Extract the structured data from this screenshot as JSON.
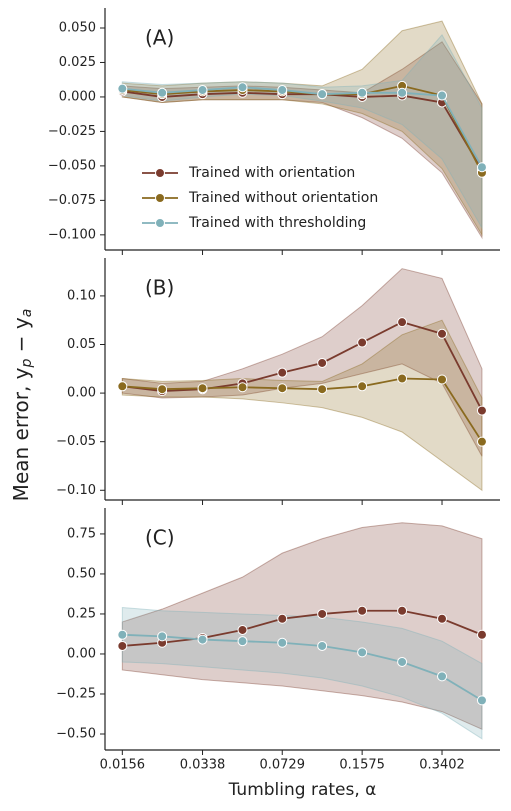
{
  "chart_data": [
    {
      "type": "line",
      "panel_label": "(A)",
      "x": [
        0.0156,
        0.0229,
        0.0338,
        0.0497,
        0.0729,
        0.1071,
        0.1575,
        0.2315,
        0.3402,
        0.5
      ],
      "xlim": [
        0.0132,
        0.595
      ],
      "ylim": [
        -0.111,
        0.0645
      ],
      "yticks": [
        {
          "value": 0.05,
          "label": "0.050"
        },
        {
          "value": 0.025,
          "label": "0.025"
        },
        {
          "value": 0,
          "label": "0.000"
        },
        {
          "value": -0.025,
          "label": "−0.025"
        },
        {
          "value": -0.05,
          "label": "−0.050"
        },
        {
          "value": -0.075,
          "label": "−0.075"
        },
        {
          "value": -0.1,
          "label": "−0.100"
        }
      ],
      "legend": "lower left",
      "series": [
        {
          "name": "Trained with orientation",
          "color": "#7a3b2e",
          "values": [
            0.004,
            0.0,
            0.002,
            0.003,
            0.002,
            0.002,
            0.0,
            0.001,
            -0.004,
            -0.053
          ],
          "upper": [
            0.008,
            0.006,
            0.007,
            0.008,
            0.007,
            0.005,
            0.003,
            0.02,
            0.04,
            -0.005
          ],
          "lower": [
            0.0,
            -0.004,
            -0.002,
            -0.002,
            -0.002,
            -0.004,
            -0.015,
            -0.03,
            -0.055,
            -0.102
          ]
        },
        {
          "name": "Trained without orientation",
          "color": "#8a6a1f",
          "values": [
            0.005,
            0.002,
            0.004,
            0.005,
            0.004,
            0.002,
            0.002,
            0.008,
            0.001,
            -0.055
          ],
          "upper": [
            0.01,
            0.008,
            0.01,
            0.011,
            0.01,
            0.008,
            0.02,
            0.048,
            0.055,
            -0.005
          ],
          "lower": [
            0.0,
            -0.004,
            -0.002,
            -0.002,
            -0.002,
            -0.005,
            -0.012,
            -0.025,
            -0.052,
            -0.1
          ]
        },
        {
          "name": "Trained with thresholding",
          "color": "#80b1b9",
          "values": [
            0.006,
            0.003,
            0.005,
            0.007,
            0.005,
            0.002,
            0.003,
            0.003,
            0.001,
            -0.051
          ],
          "upper": [
            0.011,
            0.009,
            0.01,
            0.011,
            0.01,
            0.007,
            0.008,
            0.012,
            0.045,
            -0.008
          ],
          "lower": [
            0.001,
            -0.003,
            0.0,
            0.002,
            0.001,
            -0.003,
            -0.008,
            -0.02,
            -0.045,
            -0.095
          ]
        }
      ]
    },
    {
      "type": "line",
      "panel_label": "(B)",
      "x": [
        0.0156,
        0.0229,
        0.0338,
        0.0497,
        0.0729,
        0.1071,
        0.1575,
        0.2315,
        0.3402,
        0.5
      ],
      "xlim": [
        0.0132,
        0.595
      ],
      "ylim": [
        -0.11,
        0.139
      ],
      "yticks": [
        {
          "value": 0.1,
          "label": "0.10"
        },
        {
          "value": 0.05,
          "label": "0.05"
        },
        {
          "value": 0,
          "label": "0.00"
        },
        {
          "value": -0.05,
          "label": "−0.05"
        },
        {
          "value": -0.1,
          "label": "−0.10"
        }
      ],
      "series": [
        {
          "color": "#7a3b2e",
          "values": [
            0.007,
            0.002,
            0.004,
            0.01,
            0.021,
            0.031,
            0.052,
            0.073,
            0.061,
            -0.018
          ],
          "upper": [
            0.015,
            0.01,
            0.012,
            0.025,
            0.04,
            0.058,
            0.09,
            0.128,
            0.118,
            0.025
          ],
          "lower": [
            0.0,
            -0.005,
            -0.004,
            -0.002,
            0.005,
            0.01,
            0.02,
            0.03,
            0.01,
            -0.065
          ]
        },
        {
          "color": "#8a6a1f",
          "values": [
            0.007,
            0.004,
            0.005,
            0.006,
            0.005,
            0.004,
            0.007,
            0.015,
            0.014,
            -0.05
          ],
          "upper": [
            0.015,
            0.012,
            0.013,
            0.015,
            0.013,
            0.012,
            0.03,
            0.06,
            0.075,
            -0.005
          ],
          "lower": [
            -0.002,
            -0.004,
            -0.004,
            -0.006,
            -0.01,
            -0.015,
            -0.025,
            -0.04,
            -0.07,
            -0.1
          ]
        }
      ]
    },
    {
      "type": "line",
      "panel_label": "(C)",
      "x": [
        0.0156,
        0.0229,
        0.0338,
        0.0497,
        0.0729,
        0.1071,
        0.1575,
        0.2315,
        0.3402,
        0.5
      ],
      "xlim": [
        0.0132,
        0.595
      ],
      "ylim": [
        -0.6,
        0.912
      ],
      "xticks": [
        0.0156,
        0.0338,
        0.0729,
        0.1575,
        0.3402
      ],
      "xlabel": "Tumbling rates, α",
      "ylabel": "Mean error, y_p − y_a",
      "yticks": [
        0.75,
        {
          "value": 0.5,
          "label": "0.50"
        },
        0.25,
        {
          "value": 0,
          "label": "0.00"
        },
        {
          "value": -0.25,
          "label": "−0.25"
        },
        {
          "value": -0.5,
          "label": "−0.50"
        }
      ],
      "series": [
        {
          "color": "#7a3b2e",
          "values": [
            0.05,
            0.07,
            0.1,
            0.15,
            0.22,
            0.25,
            0.27,
            0.27,
            0.22,
            0.12
          ],
          "upper": [
            0.2,
            0.28,
            0.38,
            0.48,
            0.63,
            0.72,
            0.79,
            0.82,
            0.8,
            0.72
          ],
          "lower": [
            -0.1,
            -0.13,
            -0.16,
            -0.18,
            -0.2,
            -0.23,
            -0.26,
            -0.3,
            -0.36,
            -0.47
          ]
        },
        {
          "color": "#80b1b9",
          "values": [
            0.12,
            0.11,
            0.09,
            0.08,
            0.07,
            0.05,
            0.01,
            -0.05,
            -0.14,
            -0.29
          ],
          "upper": [
            0.29,
            0.27,
            0.26,
            0.25,
            0.24,
            0.23,
            0.2,
            0.16,
            0.08,
            -0.06
          ],
          "lower": [
            -0.05,
            -0.06,
            -0.08,
            -0.1,
            -0.12,
            -0.15,
            -0.2,
            -0.27,
            -0.37,
            -0.53
          ]
        }
      ]
    }
  ]
}
